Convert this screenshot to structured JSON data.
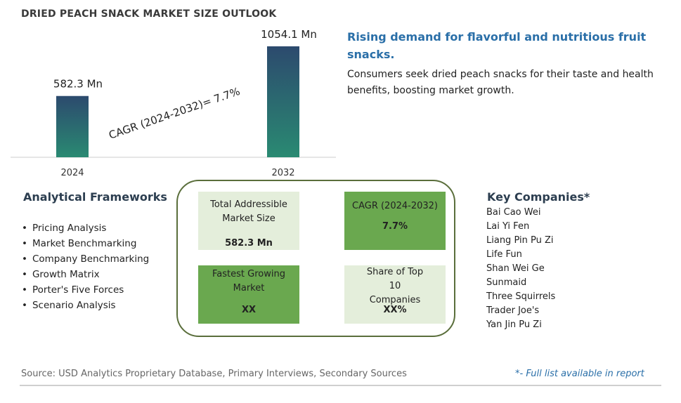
{
  "title": "DRIED PEACH SNACK MARKET SIZE OUTLOOK",
  "chart_data": {
    "type": "bar",
    "categories": [
      "2024",
      "2032"
    ],
    "values": [
      582.3,
      1054.1
    ],
    "value_labels": [
      "582.3 Mn",
      "1054.1 Mn"
    ],
    "annotation": "CAGR (2024-2032)=  7.7%",
    "colors": {
      "bar_top": "#2c4a6e",
      "bar_bottom": "#2a8a72",
      "axis": "#cccccc"
    },
    "grid": false,
    "legend": "none"
  },
  "headline": "Rising demand for flavorful and nutritious fruit snacks.",
  "subtext": "Consumers seek dried peach snacks for their taste and health benefits, boosting market growth.",
  "frameworks": {
    "title": "Analytical Frameworks",
    "items": [
      "Pricing Analysis",
      "Market Benchmarking",
      "Company Benchmarking",
      "Growth Matrix",
      "Porter's Five Forces",
      "Scenario Analysis"
    ]
  },
  "metrics": {
    "tam": {
      "label": "Total Addressible Market Size",
      "value": "582.3 Mn"
    },
    "cagr": {
      "label": "CAGR (2024-2032)",
      "value": "7.7%"
    },
    "fastest": {
      "label": "Fastest Growing Market",
      "value": "XX"
    },
    "share": {
      "label": "Share of Top 10 Companies",
      "value": "XX%"
    }
  },
  "companies": {
    "title": "Key Companies*",
    "items": [
      "Bai Cao Wei",
      "Lai Yi Fen",
      "Liang Pin Pu Zi",
      "Life Fun",
      "Shan Wei Ge",
      "Sunmaid",
      "Three Squirrels",
      "Trader Joe's",
      "Yan Jin Pu Zi"
    ]
  },
  "source": "Source: USD Analytics Proprietary Database, Primary Interviews, Secondary Sources",
  "note": "*- Full list available in report"
}
